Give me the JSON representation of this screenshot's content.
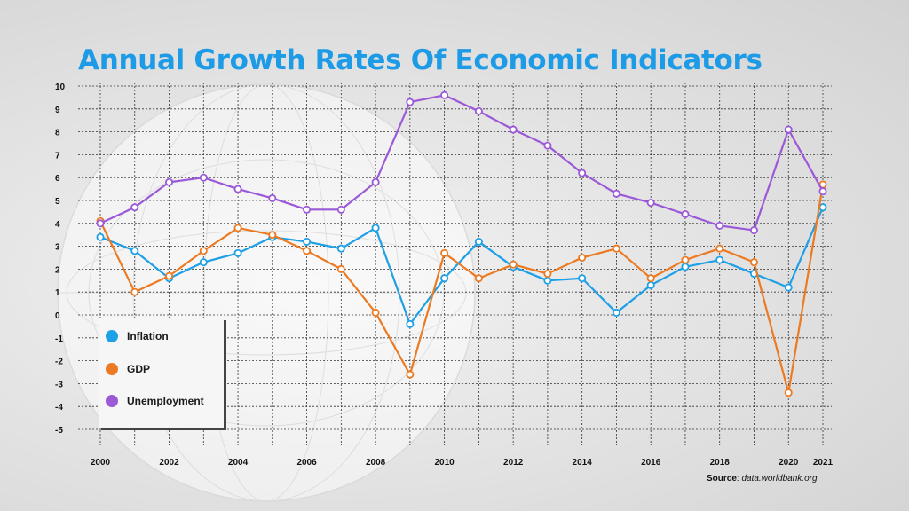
{
  "chart_data": {
    "type": "line",
    "title": "Annual Growth Rates Of Economic Indicators",
    "x": [
      2000,
      2001,
      2002,
      2003,
      2004,
      2005,
      2006,
      2007,
      2008,
      2009,
      2010,
      2011,
      2012,
      2013,
      2014,
      2015,
      2016,
      2017,
      2018,
      2019,
      2020,
      2021
    ],
    "x_tick_labels": [
      "2000",
      "2002",
      "2004",
      "2006",
      "2008",
      "2010",
      "2012",
      "2014",
      "2016",
      "2018",
      "2020",
      "2021"
    ],
    "y_tick_labels": [
      "10",
      "9",
      "8",
      "7",
      "6",
      "5",
      "4",
      "3",
      "2",
      "1",
      "0",
      "-1",
      "-2",
      "-3",
      "-4",
      "-5"
    ],
    "xlim": [
      2000,
      2021
    ],
    "ylim": [
      -5,
      10
    ],
    "grid": true,
    "legend_position": "bottom-left",
    "series": [
      {
        "name": "Inflation",
        "color": "#1ea0e6",
        "values": [
          3.4,
          2.8,
          1.6,
          2.3,
          2.7,
          3.4,
          3.2,
          2.9,
          3.8,
          -0.4,
          1.6,
          3.2,
          2.1,
          1.5,
          1.6,
          0.1,
          1.3,
          2.1,
          2.4,
          1.8,
          1.2,
          4.7
        ]
      },
      {
        "name": "GDP",
        "color": "#ec7a22",
        "values": [
          4.1,
          1.0,
          1.7,
          2.8,
          3.8,
          3.5,
          2.8,
          2.0,
          0.1,
          -2.6,
          2.7,
          1.6,
          2.2,
          1.8,
          2.5,
          2.9,
          1.6,
          2.4,
          2.9,
          2.3,
          -3.4,
          5.7
        ]
      },
      {
        "name": "Unemployment",
        "color": "#9b59d8",
        "values": [
          4.0,
          4.7,
          5.8,
          6.0,
          5.5,
          5.1,
          4.6,
          4.6,
          5.8,
          9.3,
          9.6,
          8.9,
          8.1,
          7.4,
          6.2,
          5.3,
          4.9,
          4.4,
          3.9,
          3.7,
          8.1,
          5.4
        ]
      }
    ]
  },
  "source": {
    "label": "Source",
    "value": "data.worldbank.org"
  }
}
